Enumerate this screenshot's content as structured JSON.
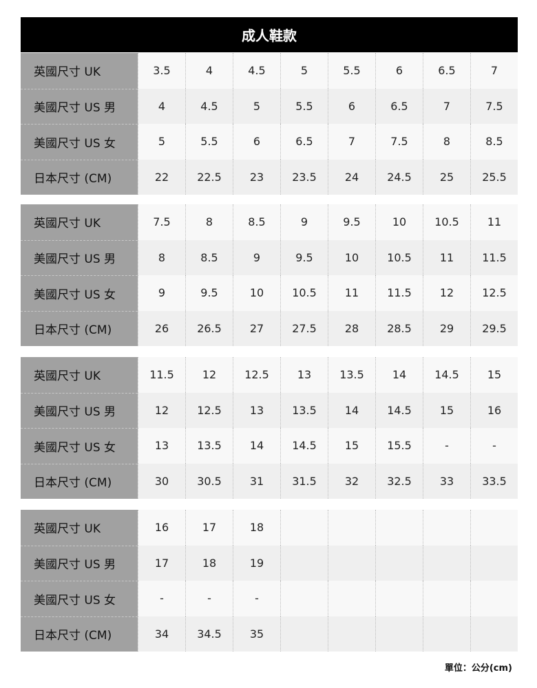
{
  "title": "成人鞋款",
  "row_labels": [
    "英國尺寸 UK",
    "美國尺寸 US 男",
    "美國尺寸 US 女",
    "日本尺寸 (CM)"
  ],
  "blocks": [
    [
      [
        "3.5",
        "4",
        "4.5",
        "5",
        "5.5",
        "6",
        "6.5",
        "7"
      ],
      [
        "4",
        "4.5",
        "5",
        "5.5",
        "6",
        "6.5",
        "7",
        "7.5"
      ],
      [
        "5",
        "5.5",
        "6",
        "6.5",
        "7",
        "7.5",
        "8",
        "8.5"
      ],
      [
        "22",
        "22.5",
        "23",
        "23.5",
        "24",
        "24.5",
        "25",
        "25.5"
      ]
    ],
    [
      [
        "7.5",
        "8",
        "8.5",
        "9",
        "9.5",
        "10",
        "10.5",
        "11"
      ],
      [
        "8",
        "8.5",
        "9",
        "9.5",
        "10",
        "10.5",
        "11",
        "11.5"
      ],
      [
        "9",
        "9.5",
        "10",
        "10.5",
        "11",
        "11.5",
        "12",
        "12.5"
      ],
      [
        "26",
        "26.5",
        "27",
        "27.5",
        "28",
        "28.5",
        "29",
        "29.5"
      ]
    ],
    [
      [
        "11.5",
        "12",
        "12.5",
        "13",
        "13.5",
        "14",
        "14.5",
        "15"
      ],
      [
        "12",
        "12.5",
        "13",
        "13.5",
        "14",
        "14.5",
        "15",
        "16"
      ],
      [
        "13",
        "13.5",
        "14",
        "14.5",
        "15",
        "15.5",
        "-",
        "-"
      ],
      [
        "30",
        "30.5",
        "31",
        "31.5",
        "32",
        "32.5",
        "33",
        "33.5"
      ]
    ],
    [
      [
        "16",
        "17",
        "18",
        "",
        "",
        "",
        "",
        ""
      ],
      [
        "17",
        "18",
        "19",
        "",
        "",
        "",
        "",
        ""
      ],
      [
        "-",
        "-",
        "-",
        "",
        "",
        "",
        "",
        ""
      ],
      [
        "34",
        "34.5",
        "35",
        "",
        "",
        "",
        "",
        ""
      ]
    ]
  ],
  "unit_note": "單位：公分(cm)"
}
